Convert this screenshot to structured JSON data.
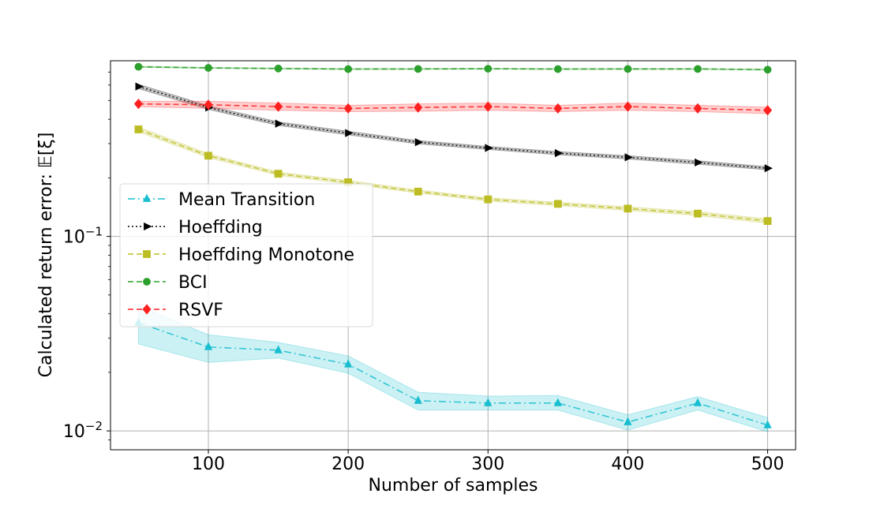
{
  "chart_data": {
    "type": "line",
    "xlabel": "Number of samples",
    "ylabel": "Calculated return error: 𝔼[ξ]",
    "yscale": "log",
    "xlim": [
      30,
      520
    ],
    "ylim": [
      0.008,
      0.8
    ],
    "xticks": [
      100,
      200,
      300,
      400,
      500
    ],
    "xtick_labels": [
      "100",
      "200",
      "300",
      "400",
      "500"
    ],
    "yticks": [
      0.01,
      0.1
    ],
    "ytick_labels": [
      {
        "base": "10",
        "exp": "−2"
      },
      {
        "base": "10",
        "exp": "−1"
      }
    ],
    "grid": true,
    "legend_position": "center-left",
    "x": [
      50,
      100,
      150,
      200,
      250,
      300,
      350,
      400,
      450,
      500
    ],
    "series": [
      {
        "name": "Mean Transition",
        "color": "#17becf",
        "linestyle": "dashdot",
        "marker": "triangle-up",
        "values": [
          0.036,
          0.027,
          0.026,
          0.022,
          0.0143,
          0.0139,
          0.0139,
          0.0111,
          0.0139,
          0.0107
        ],
        "lower": [
          0.028,
          0.0225,
          0.0237,
          0.0198,
          0.0128,
          0.0128,
          0.0128,
          0.0101,
          0.0128,
          0.0099
        ],
        "upper": [
          0.044,
          0.0312,
          0.0285,
          0.0243,
          0.0158,
          0.0151,
          0.0152,
          0.0121,
          0.015,
          0.0117
        ]
      },
      {
        "name": "Hoeffding",
        "color": "#000000",
        "linestyle": "dotted",
        "marker": "triangle-right",
        "values": [
          0.59,
          0.46,
          0.38,
          0.34,
          0.305,
          0.285,
          0.268,
          0.255,
          0.24,
          0.224
        ],
        "lower": [
          0.575,
          0.45,
          0.372,
          0.333,
          0.299,
          0.28,
          0.263,
          0.25,
          0.235,
          0.22
        ],
        "upper": [
          0.605,
          0.47,
          0.388,
          0.347,
          0.311,
          0.29,
          0.273,
          0.26,
          0.245,
          0.228
        ]
      },
      {
        "name": "Hoeffding Monotone",
        "color": "#bcbd22",
        "linestyle": "dashed",
        "marker": "square",
        "values": [
          0.355,
          0.26,
          0.21,
          0.19,
          0.17,
          0.155,
          0.147,
          0.139,
          0.131,
          0.12
        ],
        "lower": [
          0.345,
          0.254,
          0.206,
          0.186,
          0.167,
          0.152,
          0.144,
          0.136,
          0.128,
          0.117
        ],
        "upper": [
          0.365,
          0.266,
          0.214,
          0.194,
          0.173,
          0.158,
          0.15,
          0.142,
          0.134,
          0.123
        ]
      },
      {
        "name": "BCI",
        "color": "#2ca02c",
        "linestyle": "dashed",
        "marker": "circle",
        "values": [
          0.745,
          0.735,
          0.73,
          0.725,
          0.726,
          0.728,
          0.725,
          0.726,
          0.726,
          0.72
        ],
        "lower": [
          0.74,
          0.73,
          0.725,
          0.72,
          0.721,
          0.723,
          0.72,
          0.721,
          0.721,
          0.715
        ],
        "upper": [
          0.75,
          0.74,
          0.735,
          0.73,
          0.731,
          0.733,
          0.73,
          0.731,
          0.731,
          0.725
        ]
      },
      {
        "name": "RSVF",
        "color": "#ff2020",
        "linestyle": "dashed",
        "marker": "diamond",
        "values": [
          0.48,
          0.475,
          0.465,
          0.455,
          0.46,
          0.465,
          0.455,
          0.465,
          0.455,
          0.445
        ],
        "lower": [
          0.465,
          0.455,
          0.445,
          0.438,
          0.44,
          0.445,
          0.438,
          0.445,
          0.438,
          0.428
        ],
        "upper": [
          0.495,
          0.495,
          0.485,
          0.472,
          0.48,
          0.485,
          0.472,
          0.485,
          0.472,
          0.462
        ]
      }
    ]
  }
}
